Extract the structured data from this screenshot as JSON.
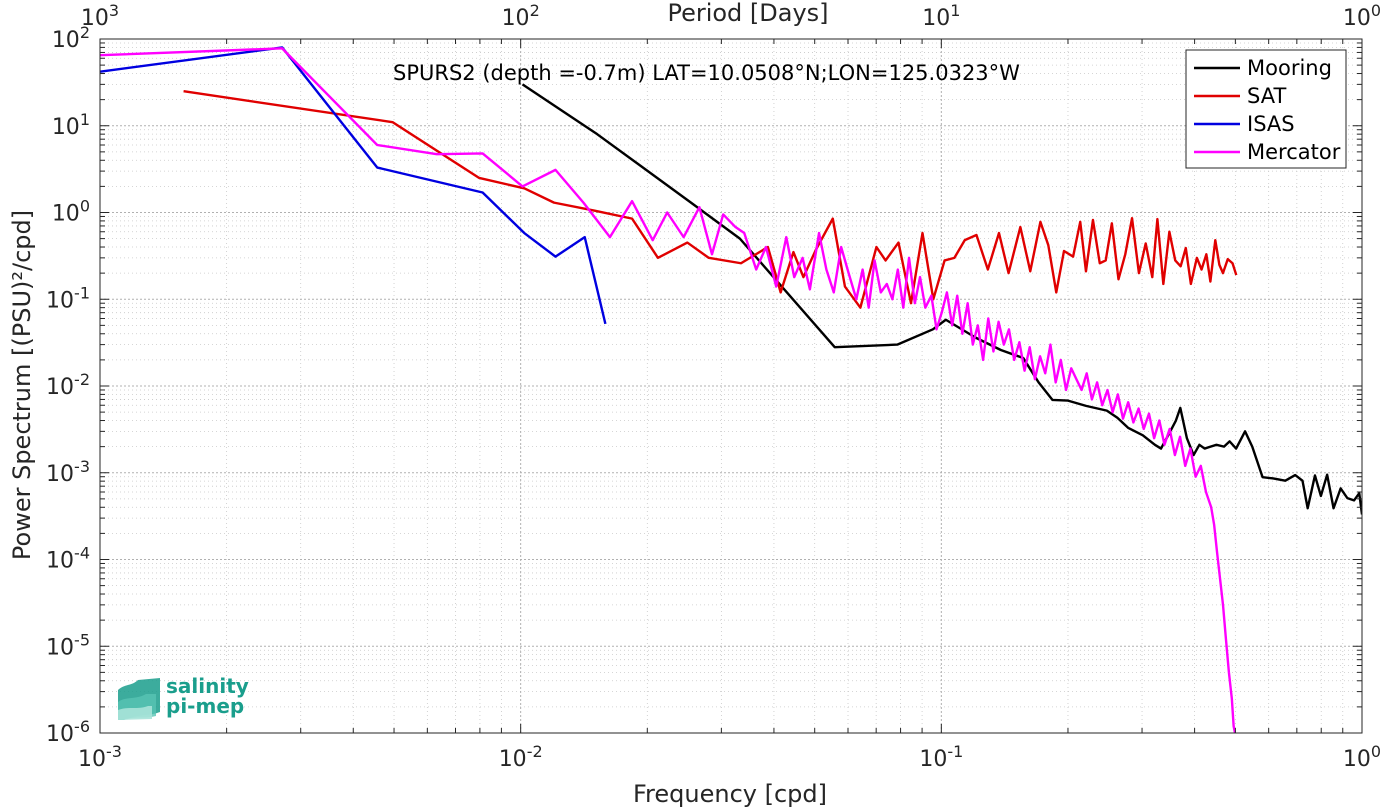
{
  "chart_data": {
    "type": "line",
    "xscale": "log",
    "yscale": "log",
    "xlim": [
      0.001,
      1
    ],
    "ylim": [
      1e-06,
      100
    ],
    "grid": true,
    "legend_position": "top-right",
    "xlabel": "Frequency [cpd]",
    "ylabel": "Power Spectrum [(PSU)²/cpd]",
    "top_axis_label": "Period [Days]",
    "annotation": "SPURS2 (depth =-0.7m) LAT=10.0508°N;LON=125.0323°W",
    "x_ticks": [
      {
        "value": 0.001,
        "base": "10",
        "exp": "-3"
      },
      {
        "value": 0.01,
        "base": "10",
        "exp": "-2"
      },
      {
        "value": 0.1,
        "base": "10",
        "exp": "-1"
      },
      {
        "value": 1,
        "base": "10",
        "exp": "0"
      }
    ],
    "top_ticks": [
      {
        "value": 0.001,
        "base": "10",
        "exp": "3"
      },
      {
        "value": 0.01,
        "base": "10",
        "exp": "2"
      },
      {
        "value": 0.1,
        "base": "10",
        "exp": "1"
      },
      {
        "value": 1,
        "base": "10",
        "exp": "0"
      }
    ],
    "y_ticks": [
      {
        "value": 100,
        "base": "10",
        "exp": "2"
      },
      {
        "value": 10,
        "base": "10",
        "exp": "1"
      },
      {
        "value": 1,
        "base": "10",
        "exp": "0"
      },
      {
        "value": 0.1,
        "base": "10",
        "exp": "-1"
      },
      {
        "value": 0.01,
        "base": "10",
        "exp": "-2"
      },
      {
        "value": 0.001,
        "base": "10",
        "exp": "-3"
      },
      {
        "value": 0.0001,
        "base": "10",
        "exp": "-4"
      },
      {
        "value": 1e-05,
        "base": "10",
        "exp": "-5"
      },
      {
        "value": 1e-06,
        "base": "10",
        "exp": "-6"
      }
    ],
    "series": [
      {
        "name": "Mooring",
        "color": "#000000",
        "x": [
          0.0101,
          0.0152,
          0.0254,
          0.0332,
          0.0558,
          0.0786,
          0.0955,
          0.1025,
          0.1208,
          0.1385,
          0.1566,
          0.1703,
          0.1838,
          0.1995,
          0.2208,
          0.2474,
          0.2621,
          0.2779,
          0.3013,
          0.3219,
          0.3328,
          0.3502,
          0.3611,
          0.3699,
          0.3835,
          0.3978,
          0.4106,
          0.4226,
          0.4365,
          0.4508,
          0.4699,
          0.4845,
          0.502,
          0.5273,
          0.5484,
          0.5802,
          0.6152,
          0.6571,
          0.6938,
          0.722,
          0.7428,
          0.7729,
          0.7985,
          0.8263,
          0.8558,
          0.8897,
          0.923,
          0.9573,
          0.9851,
          1.0
        ],
        "y": [
          30,
          8.0,
          1.3,
          0.5,
          0.028,
          0.03,
          0.045,
          0.058,
          0.036,
          0.026,
          0.021,
          0.011,
          0.0069,
          0.0068,
          0.0059,
          0.0052,
          0.0043,
          0.0033,
          0.0027,
          0.0021,
          0.0019,
          0.003,
          0.004,
          0.0056,
          0.0025,
          0.0016,
          0.0021,
          0.0019,
          0.002,
          0.0021,
          0.002,
          0.0023,
          0.0019,
          0.003,
          0.002,
          0.00089,
          0.00086,
          0.00081,
          0.00094,
          0.00081,
          0.00039,
          0.00093,
          0.00054,
          0.00095,
          0.00039,
          0.00066,
          0.00051,
          0.00048,
          0.00058,
          0.00033
        ]
      },
      {
        "name": "SAT",
        "color": "#e00000",
        "x": [
          0.00158,
          0.00496,
          0.00797,
          0.0102,
          0.012,
          0.015,
          0.0184,
          0.0212,
          0.0249,
          0.028,
          0.0334,
          0.0387,
          0.0415,
          0.0445,
          0.047,
          0.0503,
          0.0552,
          0.059,
          0.0642,
          0.0701,
          0.0737,
          0.0791,
          0.0847,
          0.0902,
          0.0957,
          0.1018,
          0.1074,
          0.1137,
          0.1212,
          0.129,
          0.1371,
          0.1445,
          0.1541,
          0.1627,
          0.172,
          0.1796,
          0.1876,
          0.1957,
          0.2057,
          0.2139,
          0.2207,
          0.2293,
          0.238,
          0.2459,
          0.2543,
          0.2637,
          0.2737,
          0.284,
          0.2949,
          0.3061,
          0.3173,
          0.3263,
          0.3371,
          0.3484,
          0.3598,
          0.3706,
          0.3812,
          0.3919,
          0.405,
          0.4155,
          0.4266,
          0.4361,
          0.448,
          0.458,
          0.4672,
          0.4796,
          0.4923,
          0.5025
        ],
        "y": [
          25,
          11,
          2.5,
          1.9,
          1.3,
          1.05,
          0.85,
          0.3,
          0.45,
          0.3,
          0.26,
          0.4,
          0.12,
          0.35,
          0.18,
          0.37,
          0.85,
          0.14,
          0.08,
          0.4,
          0.28,
          0.45,
          0.09,
          0.58,
          0.1,
          0.28,
          0.3,
          0.48,
          0.55,
          0.22,
          0.58,
          0.2,
          0.68,
          0.21,
          0.78,
          0.42,
          0.12,
          0.36,
          0.31,
          0.78,
          0.21,
          0.82,
          0.26,
          0.28,
          0.75,
          0.17,
          0.33,
          0.86,
          0.2,
          0.44,
          0.18,
          0.84,
          0.15,
          0.6,
          0.28,
          0.24,
          0.39,
          0.15,
          0.3,
          0.22,
          0.33,
          0.16,
          0.48,
          0.25,
          0.2,
          0.29,
          0.26,
          0.19
        ]
      },
      {
        "name": "ISAS",
        "color": "#0000e0",
        "x": [
          0.001,
          0.00271,
          0.00456,
          0.00812,
          0.0102,
          0.0121,
          0.0142,
          0.0159
        ],
        "y": [
          42,
          80,
          3.3,
          1.7,
          0.58,
          0.31,
          0.52,
          0.052
        ]
      },
      {
        "name": "Mercator",
        "color": "#ff00ff",
        "x": [
          0.001,
          0.00271,
          0.00456,
          0.00632,
          0.00812,
          0.0101,
          0.0121,
          0.0141,
          0.0163,
          0.0184,
          0.0206,
          0.0223,
          0.0244,
          0.0266,
          0.0285,
          0.0303,
          0.0324,
          0.034,
          0.0363,
          0.0383,
          0.0405,
          0.0428,
          0.0447,
          0.0468,
          0.0487,
          0.0512,
          0.0533,
          0.0555,
          0.0578,
          0.0602,
          0.0628,
          0.065,
          0.0672,
          0.0694,
          0.0718,
          0.0742,
          0.0765,
          0.0788,
          0.0812,
          0.0838,
          0.0865,
          0.089,
          0.0916,
          0.0947,
          0.0974,
          0.1002,
          0.1031,
          0.1061,
          0.1091,
          0.1122,
          0.1155,
          0.1188,
          0.1221,
          0.1257,
          0.1293,
          0.133,
          0.1368,
          0.1408,
          0.1448,
          0.149,
          0.1533,
          0.1577,
          0.1622,
          0.1669,
          0.1717,
          0.1766,
          0.1817,
          0.187,
          0.1923,
          0.1979,
          0.2036,
          0.2094,
          0.2155,
          0.2216,
          0.228,
          0.2346,
          0.2413,
          0.2483,
          0.2554,
          0.2628,
          0.2703,
          0.2781,
          0.2861,
          0.2944,
          0.3028,
          0.3116,
          0.3205,
          0.3298,
          0.3392,
          0.349,
          0.3591,
          0.3694,
          0.38,
          0.3909,
          0.4022,
          0.4138,
          0.4257,
          0.438,
          0.4452,
          0.4524,
          0.4598,
          0.4673,
          0.4749,
          0.4826,
          0.4904,
          0.4953,
          0.499
        ],
        "y": [
          65,
          78,
          6.0,
          4.7,
          4.8,
          2.0,
          3.1,
          1.3,
          0.52,
          1.35,
          0.48,
          1.0,
          0.52,
          1.15,
          0.33,
          0.95,
          0.68,
          0.58,
          0.22,
          0.4,
          0.14,
          0.52,
          0.18,
          0.3,
          0.13,
          0.58,
          0.22,
          0.12,
          0.4,
          0.2,
          0.1,
          0.22,
          0.08,
          0.28,
          0.12,
          0.15,
          0.1,
          0.22,
          0.08,
          0.3,
          0.09,
          0.18,
          0.08,
          0.11,
          0.045,
          0.07,
          0.12,
          0.05,
          0.11,
          0.04,
          0.09,
          0.03,
          0.05,
          0.02,
          0.06,
          0.025,
          0.055,
          0.03,
          0.045,
          0.02,
          0.032,
          0.015,
          0.028,
          0.012,
          0.022,
          0.014,
          0.03,
          0.011,
          0.02,
          0.009,
          0.016,
          0.012,
          0.009,
          0.014,
          0.007,
          0.011,
          0.006,
          0.009,
          0.005,
          0.008,
          0.0042,
          0.0065,
          0.0038,
          0.0055,
          0.0032,
          0.0048,
          0.0025,
          0.004,
          0.0021,
          0.0032,
          0.0016,
          0.0026,
          0.0012,
          0.0019,
          0.0009,
          0.0012,
          0.0006,
          0.0004,
          0.00025,
          0.00012,
          6e-05,
          3e-05,
          1.2e-05,
          5e-06,
          2.5e-06,
          1.2e-06,
          1e-06
        ]
      }
    ]
  },
  "logo": {
    "line1": "salinity",
    "line2": "pi-mep"
  }
}
